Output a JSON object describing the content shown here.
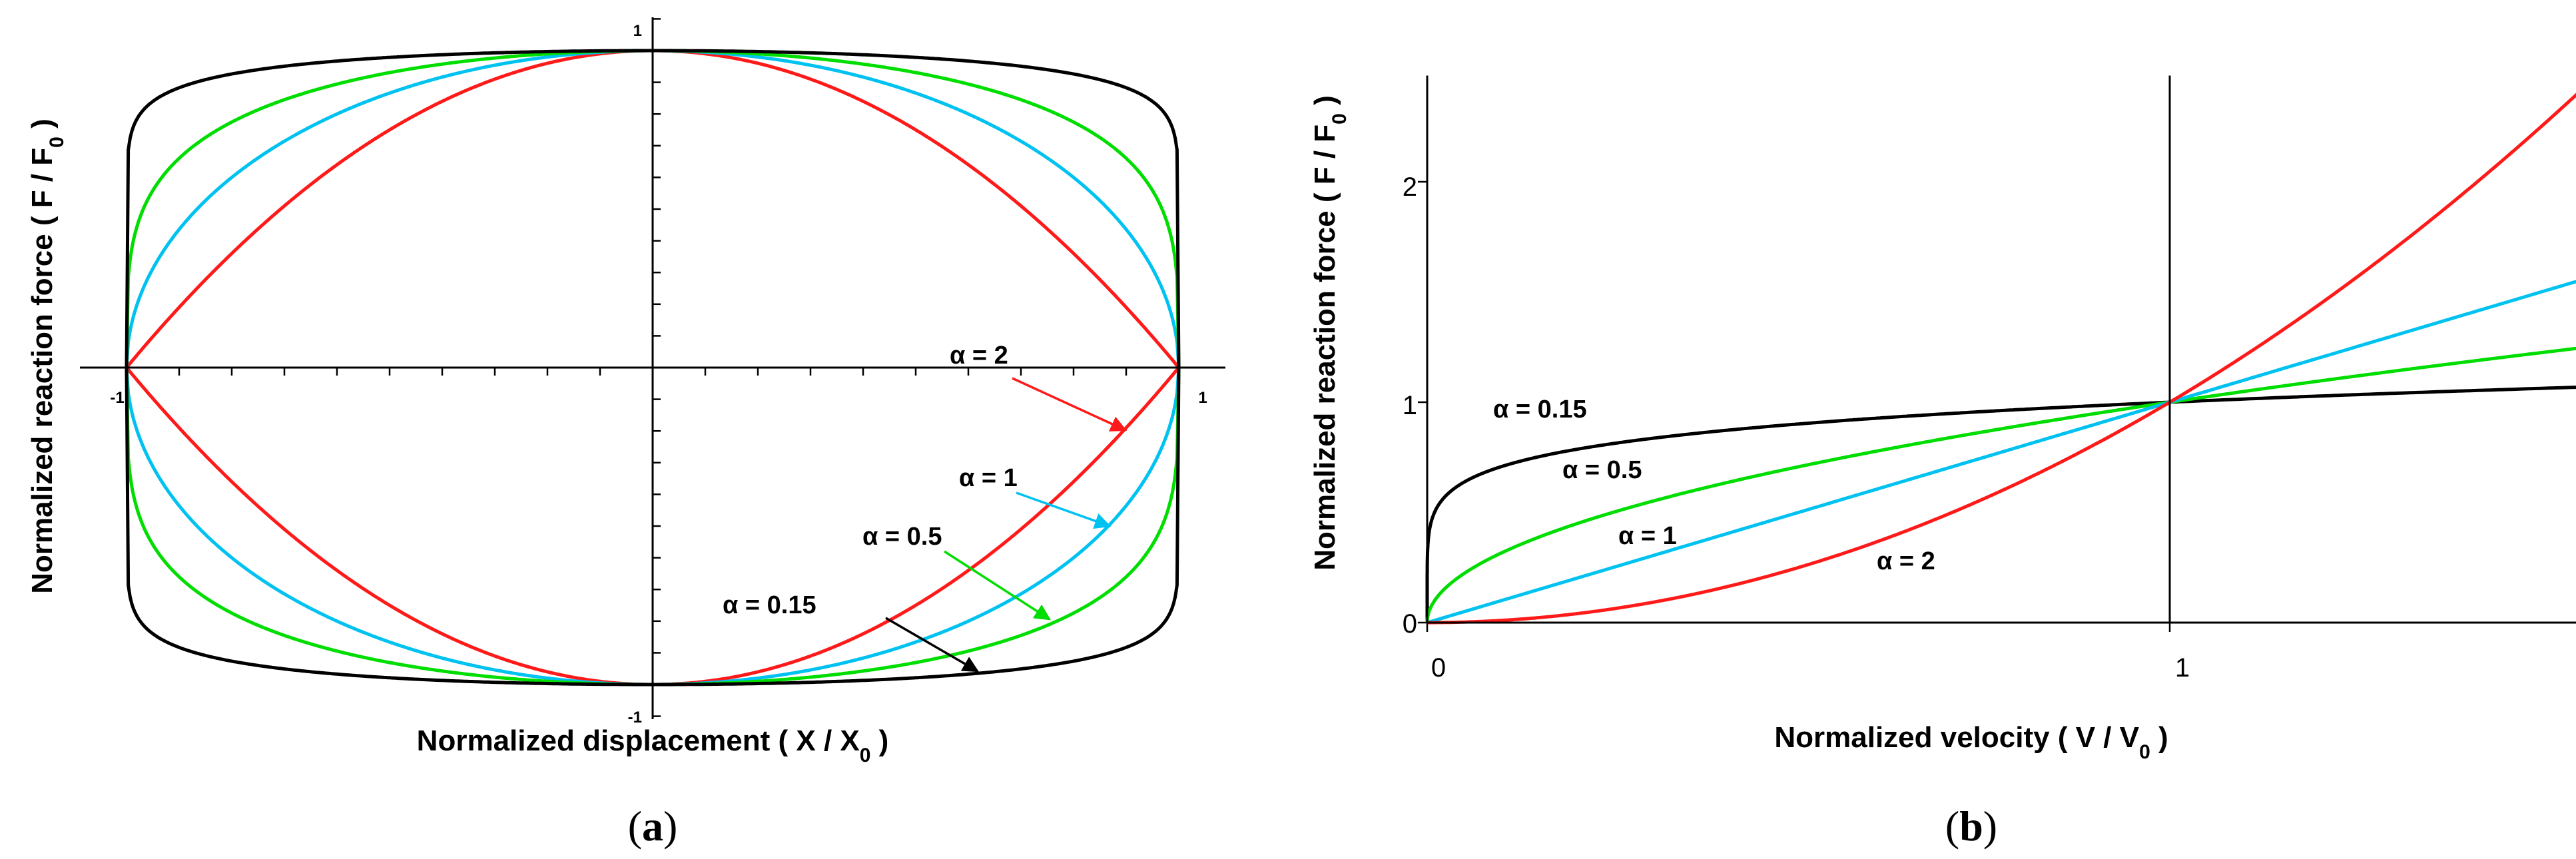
{
  "colors": {
    "alpha_2": "#ff1a1a",
    "alpha_1": "#00c2f0",
    "alpha_0_5": "#00dd00",
    "alpha_0_15": "#000000"
  },
  "panels": {
    "a": {
      "label_open": "(",
      "label_letter": "a",
      "label_close": ")"
    },
    "b": {
      "label_open": "(",
      "label_letter": "b",
      "label_close": ")"
    }
  },
  "chart_data": [
    {
      "type": "line",
      "panel": "a",
      "title": "",
      "xlabel_main": "Normalized displacement ( X / X",
      "xlabel_sub": "0",
      "xlabel_end": " )",
      "ylabel_main": "Normalized reaction force ( F / F",
      "ylabel_sub": "0",
      "ylabel_end": " )",
      "xlim": [
        -1,
        1
      ],
      "ylim": [
        -1.2,
        1.2
      ],
      "x_tick_labels": [
        "-1",
        "1"
      ],
      "y_tick_labels": [
        "1",
        "-1"
      ],
      "grid": false,
      "curve_formula": "F/F0 = ± sqrt(1 - (X/X0)^2)^alpha (force–displacement hysteresis loop)",
      "series": [
        {
          "name": "α = 2",
          "alpha": 2,
          "color_key": "alpha_2"
        },
        {
          "name": "α = 1",
          "alpha": 1,
          "color_key": "alpha_1"
        },
        {
          "name": "α = 0.5",
          "alpha": 0.5,
          "color_key": "alpha_0_5"
        },
        {
          "name": "α = 0.15",
          "alpha": 0.15,
          "color_key": "alpha_0_15"
        }
      ]
    },
    {
      "type": "line",
      "panel": "b",
      "title": "",
      "xlabel_main": "Normalized velocity ( V / V",
      "xlabel_sub": "0",
      "xlabel_end": " )",
      "ylabel_main": "Normalized reaction force ( F / F",
      "ylabel_sub": "0",
      "ylabel_end": " )",
      "xlim": [
        0,
        1.6
      ],
      "ylim": [
        0,
        2.5
      ],
      "x_ticks": [
        0,
        1
      ],
      "x_tick_labels": [
        "0",
        "1"
      ],
      "y_ticks": [
        0,
        1,
        2
      ],
      "y_tick_labels": [
        "0",
        "1",
        "2"
      ],
      "grid": false,
      "curve_formula": "F/F0 = (V/V0)^alpha",
      "series": [
        {
          "name": "α = 0.15",
          "alpha": 0.15,
          "color_key": "alpha_0_15"
        },
        {
          "name": "α = 0.5",
          "alpha": 0.5,
          "color_key": "alpha_0_5"
        },
        {
          "name": "α = 1",
          "alpha": 1,
          "color_key": "alpha_1"
        },
        {
          "name": "α = 2",
          "alpha": 2,
          "color_key": "alpha_2"
        }
      ]
    }
  ]
}
